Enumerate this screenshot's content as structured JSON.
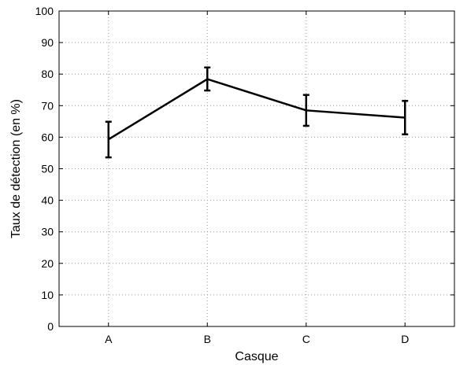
{
  "chart_data": {
    "type": "line",
    "xlabel": "Casque",
    "ylabel": "Taux de détection (en %)",
    "categories": [
      "A",
      "B",
      "C",
      "D"
    ],
    "ylim": [
      0,
      100
    ],
    "yticks": [
      0,
      10,
      20,
      30,
      40,
      50,
      60,
      70,
      80,
      90,
      100
    ],
    "grid": true,
    "series": [
      {
        "values": [
          59.3,
          78.4,
          68.5,
          66.2
        ],
        "error_low": [
          53.6,
          74.8,
          63.6,
          60.9
        ],
        "error_high": [
          64.9,
          82.1,
          73.4,
          71.5
        ],
        "color": "#000000"
      }
    ]
  }
}
